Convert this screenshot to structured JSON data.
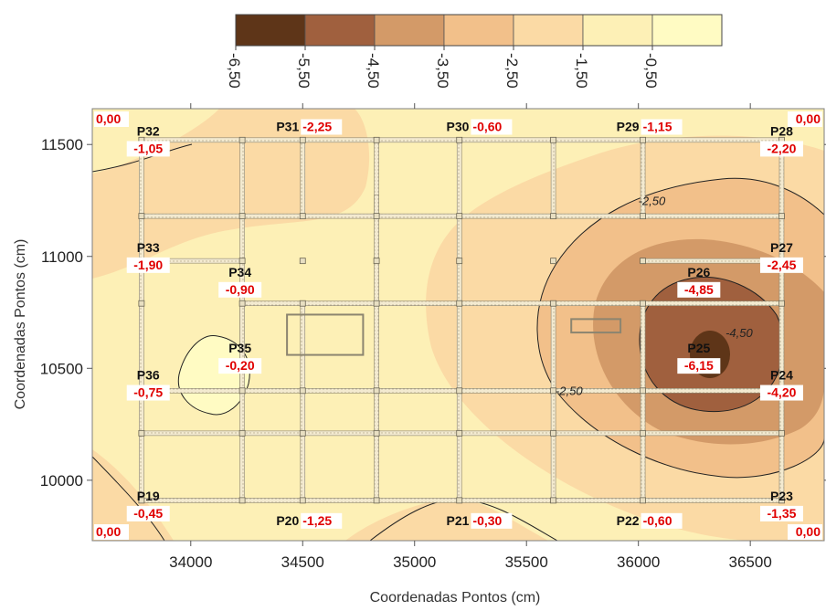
{
  "chart_data": {
    "type": "heatmap",
    "xlabel": "Coordenadas Pontos (cm)",
    "ylabel": "Coordenadas Pontos (cm)",
    "xlim": [
      33560,
      36830
    ],
    "ylim": [
      9730,
      11660
    ],
    "xticks": [
      34000,
      34500,
      35000,
      35500,
      36000,
      36500
    ],
    "yticks": [
      10000,
      10500,
      11000,
      11500
    ],
    "x_tick_labels": [
      "34000",
      "34500",
      "35000",
      "35500",
      "36000",
      "36500"
    ],
    "y_tick_labels": [
      "10000",
      "10500",
      "11000",
      "11500"
    ],
    "colorbar": {
      "labels": [
        "-6,50",
        "-5,50",
        "-4,50",
        "-3,50",
        "-2,50",
        "-1,50",
        "-0,50"
      ],
      "colors": [
        "#5e3518",
        "#a0603e",
        "#d39a68",
        "#f2c08a",
        "#fbdaa5",
        "#fdf0b6",
        "#fffbc3"
      ]
    },
    "points": [
      {
        "name": "P32",
        "x": 33810,
        "y": 11540,
        "value": "-1,05"
      },
      {
        "name": "P31",
        "x": 34500,
        "y": 11560,
        "value": "-2,25"
      },
      {
        "name": "P30",
        "x": 35260,
        "y": 11560,
        "value": "-0,60"
      },
      {
        "name": "P29",
        "x": 36020,
        "y": 11560,
        "value": "-1,15"
      },
      {
        "name": "P28",
        "x": 36640,
        "y": 11540,
        "value": "-2,20"
      },
      {
        "name": "P33",
        "x": 33810,
        "y": 11020,
        "value": "-1,90"
      },
      {
        "name": "P27",
        "x": 36640,
        "y": 11020,
        "value": "-2,45"
      },
      {
        "name": "P34",
        "x": 34220,
        "y": 10910,
        "value": "-0,90"
      },
      {
        "name": "P26",
        "x": 36270,
        "y": 10910,
        "value": "-4,85"
      },
      {
        "name": "P35",
        "x": 34220,
        "y": 10570,
        "value": "-0,20"
      },
      {
        "name": "P25",
        "x": 36270,
        "y": 10570,
        "value": "-6,15"
      },
      {
        "name": "P36",
        "x": 33810,
        "y": 10450,
        "value": "-0,75"
      },
      {
        "name": "P24",
        "x": 36640,
        "y": 10450,
        "value": "-4,20"
      },
      {
        "name": "P19",
        "x": 33810,
        "y": 9910,
        "value": "-0,45"
      },
      {
        "name": "P20",
        "x": 34500,
        "y": 9800,
        "value": "-1,25"
      },
      {
        "name": "P21",
        "x": 35260,
        "y": 9800,
        "value": "-0,30"
      },
      {
        "name": "P22",
        "x": 36020,
        "y": 9800,
        "value": "-0,60"
      },
      {
        "name": "P23",
        "x": 36640,
        "y": 9910,
        "value": "-1,35"
      }
    ],
    "corner_values": {
      "top_left": "0,00",
      "top_right": "0,00",
      "bottom_left": "0,00",
      "bottom_right": "0,00"
    },
    "contour_labels": [
      {
        "text": "-2,50",
        "x": 36060,
        "y": 11230
      },
      {
        "text": "-4,50",
        "x": 36450,
        "y": 10640
      },
      {
        "text": "-2,50",
        "x": 35690,
        "y": 10380
      }
    ],
    "grid": false,
    "legend": "top"
  }
}
